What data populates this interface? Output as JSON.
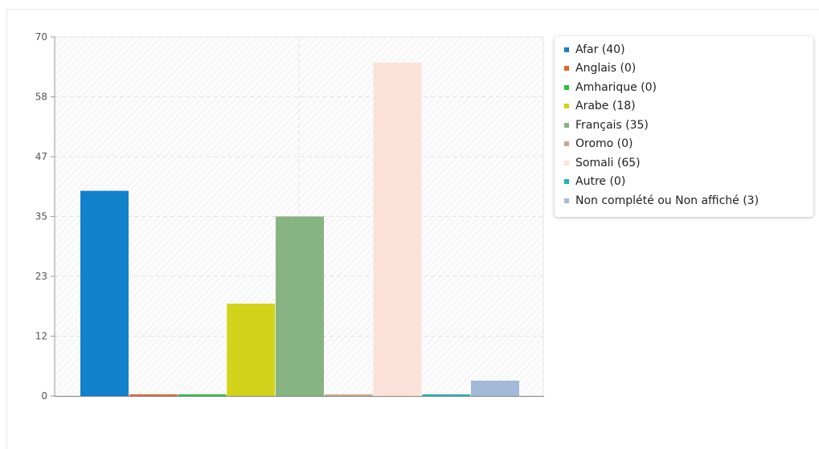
{
  "chart_data": {
    "type": "bar",
    "categories": [
      "Afar",
      "Anglais",
      "Amharique",
      "Arabe",
      "Français",
      "Oromo",
      "Somali",
      "Autre",
      "Non complété ou Non affiché"
    ],
    "values": [
      40,
      0,
      0,
      18,
      35,
      0,
      65,
      0,
      3
    ],
    "colors": [
      "#1281cc",
      "#e8622c",
      "#27c13c",
      "#d2d31a",
      "#88b382",
      "#c9a98b",
      "#fbe2d9",
      "#1fb3b3",
      "#a3b9d8"
    ],
    "legend_labels": [
      "Afar (40)",
      "Anglais (0)",
      "Amharique (0)",
      "Arabe (18)",
      "Français (35)",
      "Oromo (0)",
      "Somali (65)",
      "Autre (0)",
      "Non complété ou Non affiché (3)"
    ],
    "y_ticks": [
      "0",
      "12",
      "23",
      "35",
      "47",
      "58",
      "70"
    ],
    "ylim": [
      0,
      70
    ],
    "grid": true,
    "legend_position": "top-right"
  }
}
